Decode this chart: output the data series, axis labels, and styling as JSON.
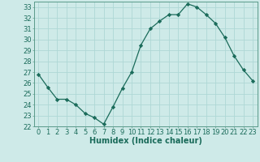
{
  "x": [
    0,
    1,
    2,
    3,
    4,
    5,
    6,
    7,
    8,
    9,
    10,
    11,
    12,
    13,
    14,
    15,
    16,
    17,
    18,
    19,
    20,
    21,
    22,
    23
  ],
  "y": [
    26.8,
    25.6,
    24.5,
    24.5,
    24.0,
    23.2,
    22.8,
    22.2,
    23.8,
    25.5,
    27.0,
    29.5,
    31.0,
    31.7,
    32.3,
    32.3,
    33.3,
    33.0,
    32.3,
    31.5,
    30.2,
    28.5,
    27.2,
    26.2
  ],
  "xlabel": "Humidex (Indice chaleur)",
  "line_color": "#1a6b5a",
  "marker": "D",
  "marker_size": 2.2,
  "bg_color": "#ceeae8",
  "grid_color": "#aed8d5",
  "ylim": [
    22,
    33.5
  ],
  "yticks": [
    22,
    23,
    24,
    25,
    26,
    27,
    28,
    29,
    30,
    31,
    32,
    33
  ],
  "xticks": [
    0,
    1,
    2,
    3,
    4,
    5,
    6,
    7,
    8,
    9,
    10,
    11,
    12,
    13,
    14,
    15,
    16,
    17,
    18,
    19,
    20,
    21,
    22,
    23
  ],
  "tick_color": "#1a6b5a",
  "xlabel_fontsize": 7.0,
  "tick_fontsize": 6.0,
  "spine_color": "#5a9a8a"
}
